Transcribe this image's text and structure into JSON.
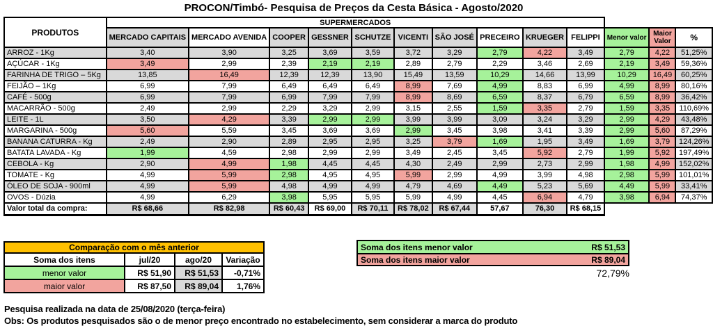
{
  "title": "PROCON/Timbó- Pesquisa de Preços da Cesta Básica - Agosto/2020",
  "colors": {
    "gray": "#d9d9d9",
    "white": "#ffffff",
    "green": "#a6f29a",
    "red": "#f2a49e",
    "orange": "#ffc000"
  },
  "main_table": {
    "products_header": "PRODUTOS",
    "group_header": "SUPERMERCADOS",
    "markets": [
      {
        "label": "MERCADO CAPITAIS",
        "bg": "gray"
      },
      {
        "label": "MERCADO AVENIDA",
        "bg": "white"
      },
      {
        "label": "COOPER",
        "bg": "gray"
      },
      {
        "label": "GESSNER",
        "bg": "gray"
      },
      {
        "label": "SCHUTZE",
        "bg": "gray"
      },
      {
        "label": "VICENTI",
        "bg": "gray"
      },
      {
        "label": "SÃO JOSÉ",
        "bg": "gray"
      },
      {
        "label": "PRECEIRO",
        "bg": "white"
      },
      {
        "label": "KRUEGER",
        "bg": "gray"
      },
      {
        "label": "FELIPPI",
        "bg": "white"
      }
    ],
    "extra_columns": [
      {
        "label": "Menor valor",
        "bg": "green"
      },
      {
        "label": "Maior Valor",
        "bg": "red"
      },
      {
        "label": "%",
        "bg": "white"
      }
    ],
    "rows": [
      {
        "product": "ARROZ - 1Kg",
        "values": [
          "3,40",
          "3,90",
          "3,25",
          "3,69",
          "3,59",
          "3,72",
          "3,29",
          "2,79",
          "4,22",
          "3,49",
          "2,79",
          "4,22"
        ],
        "fills": [
          "",
          "",
          "",
          "",
          "",
          "",
          "",
          "g",
          "r",
          "",
          "g",
          "r"
        ],
        "pct": "51,25%"
      },
      {
        "product": "AÇÚCAR - 1Kg",
        "values": [
          "3,49",
          "2,99",
          "2,39",
          "2,19",
          "2,19",
          "2,89",
          "2,79",
          "2,29",
          "3,46",
          "2,69",
          "2,19",
          "3,49"
        ],
        "fills": [
          "r",
          "",
          "",
          "g",
          "g",
          "",
          "",
          "",
          "",
          "",
          "g",
          "r"
        ],
        "pct": "59,36%"
      },
      {
        "product": "FARINHA DE TRIGO – 5Kg",
        "values": [
          "13,85",
          "16,49",
          "12,39",
          "12,39",
          "13,90",
          "15,49",
          "13,59",
          "10,29",
          "14,66",
          "13,99",
          "10,29",
          "16,49"
        ],
        "fills": [
          "",
          "r",
          "",
          "",
          "",
          "",
          "",
          "g",
          "",
          "",
          "g",
          "r"
        ],
        "pct": "60,25%"
      },
      {
        "product": "FEIJÃO – 1Kg",
        "values": [
          "6,99",
          "7,99",
          "6,49",
          "6,49",
          "6,49",
          "8,99",
          "7,69",
          "4,99",
          "8,83",
          "6,99",
          "4,99",
          "8,99"
        ],
        "fills": [
          "",
          "",
          "",
          "",
          "",
          "r",
          "",
          "g",
          "",
          "",
          "g",
          "r"
        ],
        "pct": "80,16%"
      },
      {
        "product": "CAFÉ - 500g",
        "values": [
          "6,99",
          "7,99",
          "6,99",
          "7,99",
          "7,99",
          "8,99",
          "8,69",
          "6,59",
          "8,37",
          "6,79",
          "6,59",
          "8,99"
        ],
        "fills": [
          "",
          "",
          "",
          "",
          "",
          "r",
          "",
          "g",
          "",
          "",
          "g",
          "r"
        ],
        "pct": "36,42%"
      },
      {
        "product": "MACARRÃO - 500g",
        "values": [
          "2,49",
          "2,99",
          "2,29",
          "3,29",
          "2,99",
          "3,15",
          "2,55",
          "1,59",
          "3,35",
          "2,79",
          "1,59",
          "3,35"
        ],
        "fills": [
          "",
          "",
          "",
          "",
          "",
          "",
          "",
          "g",
          "r",
          "",
          "g",
          "r"
        ],
        "pct": "110,69%"
      },
      {
        "product": "LEITE - 1L",
        "values": [
          "3,50",
          "4,29",
          "3,39",
          "2,99",
          "2,99",
          "3,99",
          "3,99",
          "3,09",
          "3,24",
          "3,29",
          "2,99",
          "4,29"
        ],
        "fills": [
          "",
          "r",
          "",
          "g",
          "g",
          "",
          "",
          "",
          "",
          "",
          "g",
          "r"
        ],
        "pct": "43,48%"
      },
      {
        "product": "MARGARINA - 500g",
        "values": [
          "5,60",
          "5,59",
          "3,45",
          "3,69",
          "3,69",
          "2,99",
          "3,45",
          "3,98",
          "3,41",
          "3,39",
          "2,99",
          "5,60"
        ],
        "fills": [
          "r",
          "",
          "",
          "",
          "",
          "g",
          "",
          "",
          "",
          "",
          "g",
          "r"
        ],
        "pct": "87,29%"
      },
      {
        "product": "BANANA CATURRA - Kg",
        "values": [
          "2,49",
          "2,90",
          "2,89",
          "2,95",
          "2,95",
          "3,25",
          "3,79",
          "1,69",
          "1,95",
          "3,49",
          "1,69",
          "3,79"
        ],
        "fills": [
          "",
          "",
          "",
          "",
          "",
          "",
          "r",
          "g",
          "",
          "",
          "g",
          "r"
        ],
        "pct": "124,26%"
      },
      {
        "product": "BATATA LAVADA - Kg",
        "values": [
          "1,99",
          "4,59",
          "2,98",
          "2,99",
          "2,99",
          "3,49",
          "2,45",
          "3,45",
          "5,92",
          "2,79",
          "1,99",
          "5,92"
        ],
        "fills": [
          "g",
          "",
          "",
          "",
          "",
          "",
          "",
          "",
          "r",
          "",
          "g",
          "r"
        ],
        "pct": "197,49%"
      },
      {
        "product": "CEBOLA - Kg",
        "values": [
          "2,90",
          "4,99",
          "1,98",
          "4,45",
          "4,45",
          "4,30",
          "2,49",
          "2,99",
          "2,73",
          "2,99",
          "1,98",
          "4,99"
        ],
        "fills": [
          "",
          "r",
          "g",
          "",
          "",
          "",
          "",
          "",
          "",
          "",
          "g",
          "r"
        ],
        "pct": "152,02%"
      },
      {
        "product": "TOMATE - Kg",
        "values": [
          "4,99",
          "5,99",
          "2,98",
          "4,95",
          "4,95",
          "5,99",
          "2,99",
          "4,99",
          "3,99",
          "4,98",
          "2,98",
          "5,99"
        ],
        "fills": [
          "",
          "r",
          "g",
          "",
          "",
          "r",
          "",
          "",
          "",
          "",
          "g",
          "r"
        ],
        "pct": "101,01%"
      },
      {
        "product": "ÓLEO DE SOJA - 900ml",
        "values": [
          "4,99",
          "5,99",
          "4,98",
          "4,99",
          "4,99",
          "4,79",
          "4,69",
          "4,49",
          "5,23",
          "5,69",
          "4,49",
          "5,99"
        ],
        "fills": [
          "",
          "r",
          "",
          "",
          "",
          "",
          "",
          "g",
          "",
          "",
          "g",
          "r"
        ],
        "pct": "33,41%"
      },
      {
        "product": "OVOS - Dúzia",
        "values": [
          "4,99",
          "6,29",
          "3,98",
          "5,95",
          "5,95",
          "5,99",
          "4,99",
          "4,45",
          "6,94",
          "4,79",
          "3,98",
          "6,94"
        ],
        "fills": [
          "",
          "",
          "g",
          "",
          "",
          "",
          "",
          "",
          "r",
          "",
          "g",
          "r"
        ],
        "pct": "74,37%"
      }
    ],
    "total_label": "Valor total da compra:",
    "total_values": [
      {
        "text": "R$ 68,66",
        "bg": "gray"
      },
      {
        "text": "R$ 82,98",
        "bg": "gray"
      },
      {
        "text": "R$ 60,43",
        "bg": "gray"
      },
      {
        "text": "R$ 69,00",
        "bg": "white"
      },
      {
        "text": "R$ 70,11",
        "bg": "gray"
      },
      {
        "text": "R$ 78,02",
        "bg": "gray"
      },
      {
        "text": "R$ 67,44",
        "bg": "gray"
      },
      {
        "text": "57,67",
        "bg": "white"
      },
      {
        "text": "76,30",
        "bg": "gray"
      },
      {
        "text": "R$ 68,15",
        "bg": "white"
      }
    ]
  },
  "comparison_table": {
    "header": "Comparação com o mês anterior",
    "columns": [
      "Soma dos itens",
      "jul/20",
      "ago/20",
      "Variação"
    ],
    "rows": [
      {
        "label": "menor valor",
        "label_bg": "green",
        "jul": "R$ 51,90",
        "ago": "R$ 51,53",
        "var": "-0,71%",
        "ago_bg": "gray"
      },
      {
        "label": "maior valor",
        "label_bg": "red",
        "jul": "R$ 87,50",
        "ago": "R$ 89,04",
        "var": "1,76%",
        "ago_bg": "gray"
      }
    ]
  },
  "summary": {
    "rows": [
      {
        "label": "Soma dos itens menor valor",
        "value": "R$ 51,53",
        "bg": "green"
      },
      {
        "label": "Soma dos itens maior valor",
        "value": "R$ 89,04",
        "bg": "red"
      }
    ],
    "overall_pct": "72,79%"
  },
  "footer": {
    "line1": "Pesquisa realizada na data de 25/08/2020 (terça-feira)",
    "line2": "Obs: Os produtos pesquisados são o de menor preço encontrado no estabelecimento, sem considerar a marca do produto"
  }
}
